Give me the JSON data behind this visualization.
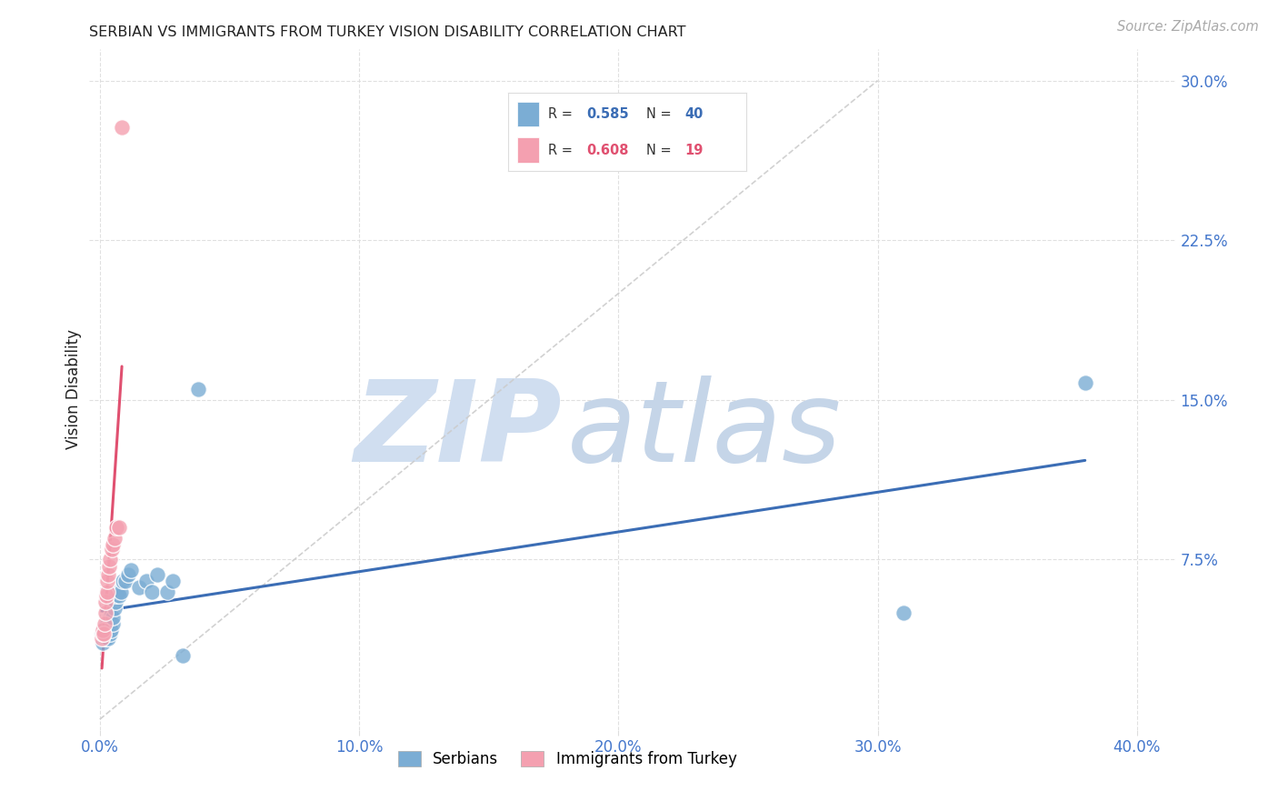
{
  "title": "SERBIAN VS IMMIGRANTS FROM TURKEY VISION DISABILITY CORRELATION CHART",
  "source": "Source: ZipAtlas.com",
  "ylabel": "Vision Disability",
  "watermark_zip": "ZIP",
  "watermark_atlas": "atlas",
  "xlim": [
    -0.004,
    0.415
  ],
  "ylim": [
    -0.005,
    0.315
  ],
  "R_serbian": 0.585,
  "N_serbian": 40,
  "R_turkey": 0.608,
  "N_turkey": 19,
  "serbian_color": "#7BADD4",
  "turkey_color": "#F4A0B0",
  "serbian_line_color": "#3B6DB5",
  "turkey_line_color": "#E05070",
  "diag_line_color": "#CCCCCC",
  "watermark_color": "#D0DEF0",
  "background_color": "#FFFFFF",
  "title_color": "#222222",
  "ylabel_color": "#222222",
  "tick_color": "#4477CC",
  "source_color": "#AAAAAA",
  "grid_color": "#DDDDDD",
  "legend_box_color": "#DDDDDD",
  "serbian_x": [
    0.0008,
    0.001,
    0.0012,
    0.0014,
    0.0016,
    0.0018,
    0.002,
    0.0022,
    0.0024,
    0.0026,
    0.0028,
    0.003,
    0.0032,
    0.0035,
    0.0038,
    0.004,
    0.0042,
    0.0045,
    0.0048,
    0.005,
    0.0055,
    0.006,
    0.0065,
    0.007,
    0.0075,
    0.008,
    0.009,
    0.01,
    0.011,
    0.012,
    0.015,
    0.018,
    0.02,
    0.022,
    0.026,
    0.028,
    0.032,
    0.038,
    0.31,
    0.38
  ],
  "serbian_y": [
    0.04,
    0.038,
    0.036,
    0.042,
    0.04,
    0.038,
    0.042,
    0.04,
    0.044,
    0.038,
    0.04,
    0.042,
    0.038,
    0.044,
    0.04,
    0.048,
    0.042,
    0.05,
    0.045,
    0.048,
    0.052,
    0.055,
    0.058,
    0.06,
    0.058,
    0.06,
    0.065,
    0.065,
    0.068,
    0.07,
    0.062,
    0.065,
    0.06,
    0.068,
    0.06,
    0.065,
    0.03,
    0.155,
    0.05,
    0.158
  ],
  "turkey_x": [
    0.0008,
    0.001,
    0.0012,
    0.0015,
    0.0018,
    0.002,
    0.0022,
    0.0025,
    0.0028,
    0.003,
    0.0033,
    0.0036,
    0.004,
    0.0045,
    0.005,
    0.0055,
    0.0065,
    0.0075,
    0.0085
  ],
  "turkey_y": [
    0.038,
    0.04,
    0.042,
    0.04,
    0.045,
    0.05,
    0.055,
    0.058,
    0.06,
    0.065,
    0.068,
    0.072,
    0.075,
    0.08,
    0.082,
    0.085,
    0.09,
    0.09,
    0.278
  ]
}
